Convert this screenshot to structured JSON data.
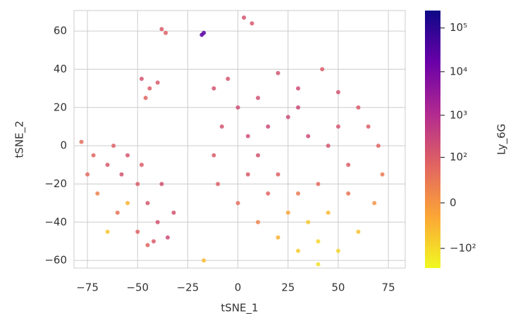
{
  "chart_data": {
    "type": "scatter",
    "x_label": "tSNE_1",
    "y_label": "tSNE_2",
    "xlim": [
      -81.7,
      83.4
    ],
    "ylim": [
      -64,
      70.7
    ],
    "xticks": [
      {
        "value": -75,
        "label": "−75"
      },
      {
        "value": -50,
        "label": "−50"
      },
      {
        "value": -25,
        "label": "−25"
      },
      0,
      25,
      50,
      75
    ],
    "yticks": [
      {
        "value": -60,
        "label": "−60"
      },
      {
        "value": -40,
        "label": "−40"
      },
      {
        "value": -20,
        "label": "−20"
      },
      0,
      20,
      40,
      60
    ],
    "grid": true,
    "x": [
      -78,
      -72,
      -65,
      -58,
      -50,
      -45,
      -40,
      -35,
      -42,
      -50,
      -60,
      -70,
      -75,
      -62,
      -55,
      -48,
      -38,
      -32,
      -55,
      -65,
      -45,
      -48,
      -44,
      -46,
      -40,
      -38,
      -36,
      -17,
      -18,
      3,
      7,
      -17,
      -12,
      -5,
      0,
      10,
      20,
      30,
      42,
      50,
      60,
      65,
      70,
      72,
      68,
      60,
      50,
      40,
      30,
      20,
      10,
      0,
      -10,
      -12,
      -8,
      5,
      15,
      25,
      35,
      45,
      55,
      40,
      30,
      20,
      10,
      25,
      35,
      45,
      55,
      15,
      5,
      30,
      50,
      40
    ],
    "y": [
      2,
      -5,
      -10,
      -15,
      -20,
      -30,
      -40,
      -48,
      -50,
      -45,
      -35,
      -25,
      -15,
      0,
      -5,
      -10,
      -20,
      -35,
      -30,
      -45,
      -52,
      35,
      30,
      25,
      33,
      61,
      59,
      59,
      58,
      67,
      64,
      -60,
      30,
      35,
      20,
      25,
      38,
      30,
      40,
      28,
      20,
      10,
      0,
      -15,
      -30,
      -45,
      -55,
      -62,
      -55,
      -48,
      -40,
      -30,
      -20,
      -5,
      10,
      5,
      10,
      15,
      5,
      0,
      -10,
      -20,
      -25,
      -15,
      -5,
      -35,
      -40,
      -35,
      -25,
      -25,
      -15,
      20,
      10,
      -50
    ],
    "color_values": [
      40,
      60,
      120,
      150,
      90,
      130,
      160,
      200,
      110,
      70,
      30,
      10,
      50,
      80,
      140,
      100,
      180,
      150,
      -20,
      -50,
      60,
      140,
      90,
      60,
      110,
      100,
      80,
      30000,
      25000,
      150,
      120,
      -30,
      160,
      130,
      200,
      170,
      140,
      190,
      100,
      160,
      120,
      90,
      60,
      20,
      0,
      -40,
      -80,
      -120,
      -60,
      -20,
      10,
      40,
      80,
      100,
      140,
      180,
      210,
      230,
      190,
      150,
      90,
      40,
      20,
      70,
      160,
      -10,
      -50,
      -30,
      30,
      60,
      110,
      250,
      130,
      -90
    ],
    "colorbar": {
      "label": "Ly_6G",
      "scale": "symlog",
      "linthresh": 10,
      "lim": [
        -300,
        250000
      ],
      "ticks": [
        {
          "value": 100000,
          "label": "10⁵"
        },
        {
          "value": 10000,
          "label": "10⁴"
        },
        {
          "value": 1000,
          "label": "10³"
        },
        {
          "value": 100,
          "label": "10²"
        },
        0,
        {
          "value": -100,
          "label": "−10²"
        }
      ],
      "colormap": [
        "#f0f921",
        "#fca636",
        "#e16462",
        "#b12a90",
        "#6a00a8",
        "#0d0887"
      ]
    }
  }
}
